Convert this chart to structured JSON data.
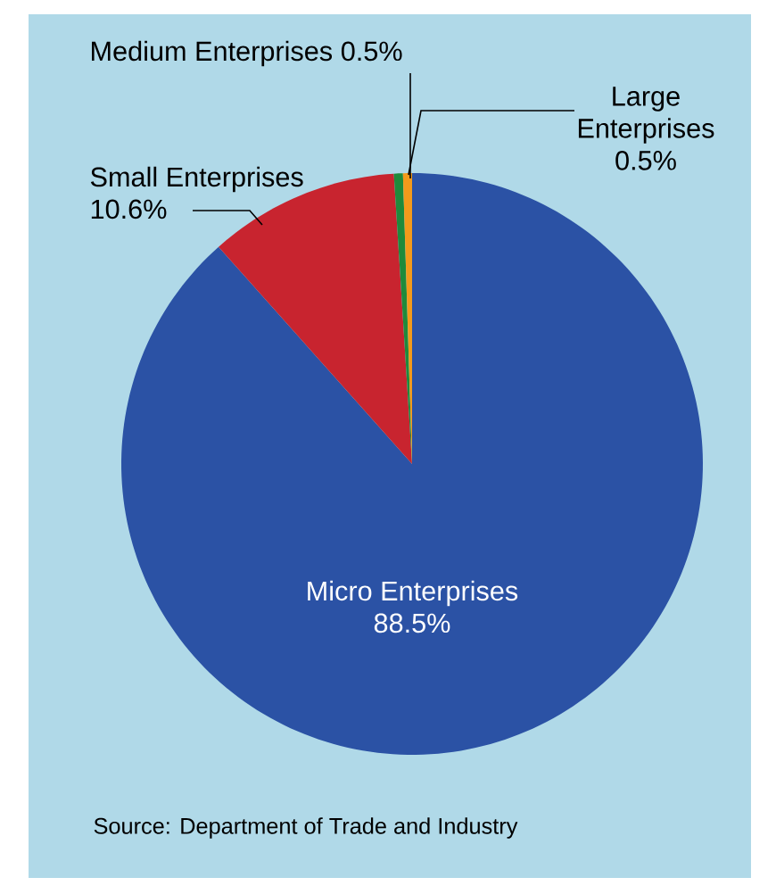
{
  "chart_data": {
    "type": "pie",
    "categories": [
      "Micro Enterprises",
      "Small Enterprises",
      "Medium Enterprises",
      "Large Enterprises"
    ],
    "values": [
      88.5,
      10.6,
      0.5,
      0.5
    ],
    "value_labels": [
      "88.5%",
      "10.6%",
      "0.5%",
      "0.5%"
    ],
    "colors": [
      "#2b52a5",
      "#c8242f",
      "#1f8a3b",
      "#f39a1b"
    ],
    "annotations": [
      "Source: Department of Trade and Industry"
    ]
  }
}
